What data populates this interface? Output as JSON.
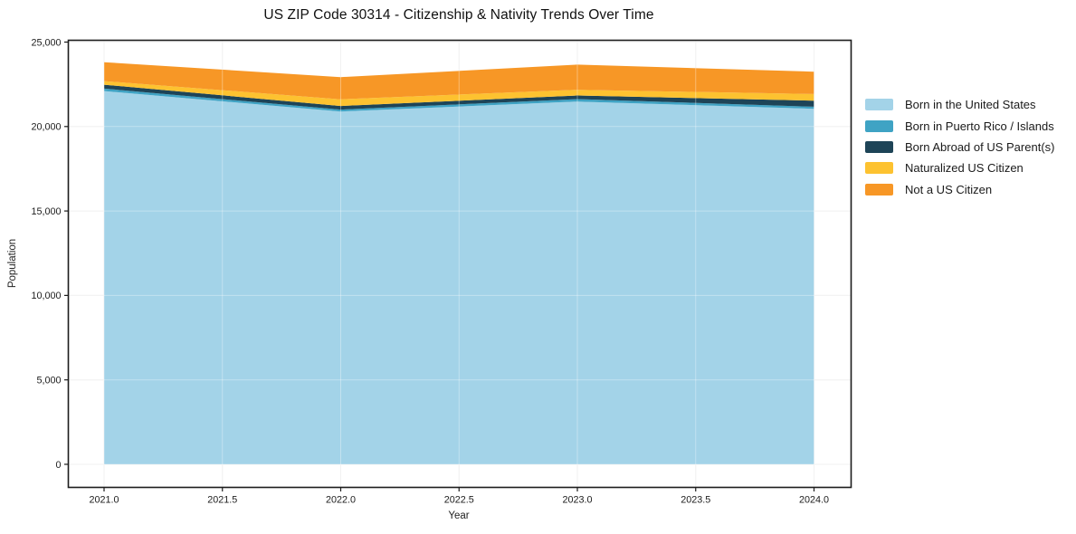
{
  "page": {
    "background": "#ffffff"
  },
  "chart_data": {
    "type": "area",
    "stacked": true,
    "title": "US ZIP Code 30314 - Citizenship & Nativity Trends Over Time",
    "xlabel": "Year",
    "ylabel": "Population",
    "x": [
      2021,
      2022,
      2023,
      2024
    ],
    "series": [
      {
        "name": "Born in the United States",
        "color": "#a3d3e8",
        "values": [
          22100,
          20890,
          21480,
          21050
        ]
      },
      {
        "name": "Born in Puerto Rico / Islands",
        "color": "#3fa3c4",
        "values": [
          145,
          110,
          145,
          125
        ]
      },
      {
        "name": "Born Abroad of US Parent(s)",
        "color": "#1e4457",
        "values": [
          230,
          215,
          215,
          360
        ]
      },
      {
        "name": "Naturalized US Citizen",
        "color": "#fdc230",
        "values": [
          215,
          400,
          335,
          390
        ]
      },
      {
        "name": "Not a US Citizen",
        "color": "#f79726",
        "values": [
          1120,
          1310,
          1490,
          1320
        ]
      }
    ],
    "totals": [
      23810,
      22925,
      23665,
      23245
    ],
    "ylim": [
      0,
      25000
    ],
    "xlim": [
      2021,
      2024
    ],
    "yticks": {
      "values": [
        0,
        5000,
        10000,
        15000,
        20000,
        25000
      ],
      "labels": [
        "0",
        "5,000",
        "10,000",
        "15,000",
        "20,000",
        "25,000"
      ]
    },
    "xticks": {
      "values": [
        2021.0,
        2021.5,
        2022.0,
        2022.5,
        2023.0,
        2023.5,
        2024.0
      ],
      "labels": [
        "2021.0",
        "2021.5",
        "2022.0",
        "2022.5",
        "2023.0",
        "2023.5",
        "2024.0"
      ]
    },
    "grid": true,
    "legend_position": "right",
    "spine_color": "#1c1c1c"
  }
}
